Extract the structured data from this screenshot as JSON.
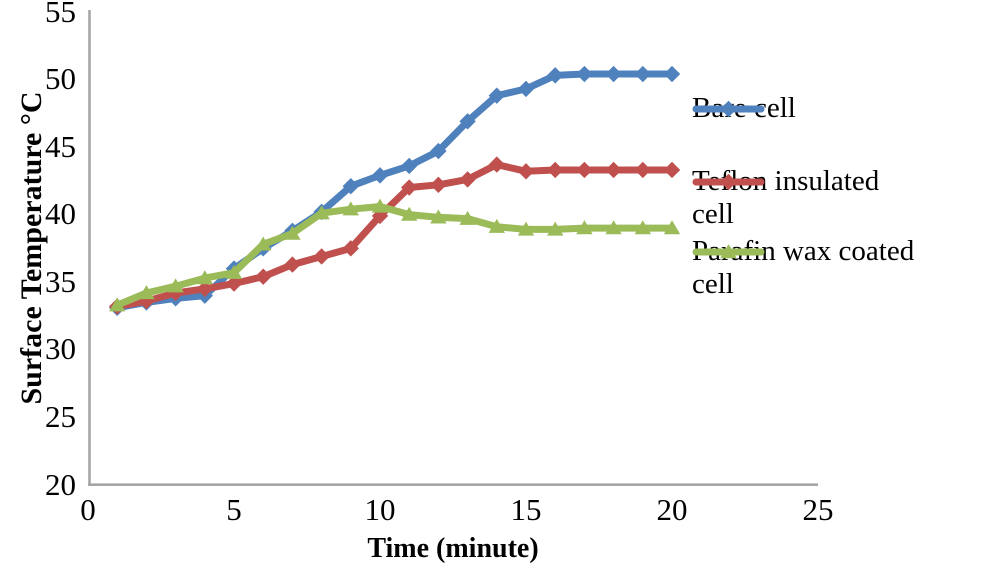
{
  "chart_data": {
    "type": "line",
    "title": "",
    "xlabel": "Time (minute)",
    "ylabel": "Surface Temperature °C",
    "x": [
      1,
      2,
      3,
      4,
      5,
      6,
      7,
      8,
      9,
      10,
      11,
      12,
      13,
      14,
      15,
      16,
      17,
      18,
      19,
      20
    ],
    "series": [
      {
        "name": "Bare cell",
        "color": "#4F81BD",
        "marker": "diamond",
        "values": [
          33.0,
          33.4,
          33.7,
          33.9,
          35.9,
          37.4,
          38.7,
          40.1,
          42.0,
          42.8,
          43.5,
          44.6,
          46.8,
          48.7,
          49.2,
          50.2,
          50.3,
          50.3,
          50.3,
          50.3
        ]
      },
      {
        "name": "Teflon insulated cell",
        "color": "#C0504D",
        "marker": "diamond",
        "values": [
          33.1,
          33.5,
          34.1,
          34.4,
          34.8,
          35.3,
          36.2,
          36.8,
          37.4,
          39.8,
          41.9,
          42.1,
          42.5,
          43.6,
          43.1,
          43.2,
          43.2,
          43.2,
          43.2,
          43.2
        ]
      },
      {
        "name": "Parafin wax coated cell",
        "color": "#9BBB59",
        "marker": "triangle",
        "values": [
          33.2,
          34.1,
          34.6,
          35.2,
          35.6,
          37.7,
          38.5,
          40.0,
          40.3,
          40.5,
          39.9,
          39.7,
          39.6,
          39.0,
          38.8,
          38.8,
          38.9,
          38.9,
          38.9,
          38.9
        ]
      }
    ],
    "xlim": [
      0,
      25
    ],
    "ylim": [
      20,
      55
    ],
    "xticks": [
      0,
      5,
      10,
      15,
      20,
      25
    ],
    "yticks": [
      55,
      50,
      45,
      40,
      35,
      30,
      25,
      20
    ],
    "grid": false,
    "legend_position": "right",
    "axis_color": "#a6a6a6"
  }
}
